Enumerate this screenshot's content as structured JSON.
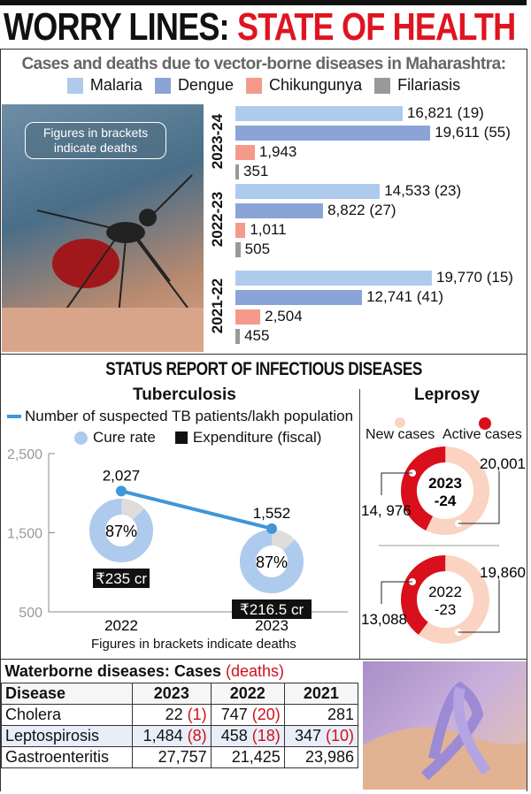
{
  "title": {
    "black": "WORRY LINES:",
    "red": "STATE OF HEALTH"
  },
  "vector": {
    "subtitle": "Cases and deaths due to vector-borne diseases in Maharashtra:",
    "note": "Figures in brackets indicate deaths",
    "colors": {
      "Malaria": "#aecbee",
      "Dengue": "#8aa4d8",
      "Chikungunya": "#f5998a",
      "Filariasis": "#999999"
    }
  },
  "tb": {
    "title": "Tuberculosis",
    "legend_line": "Number of suspected TB patients/lakh population",
    "legend_cure": "Cure rate",
    "legend_exp": "Expenditure (fiscal)",
    "footnote": "Figures in brackets  indicate deaths"
  },
  "leprosy": {
    "title": "Leprosy",
    "legend_new": "New cases",
    "legend_active": "Active cases",
    "panels": [
      {
        "year": "2023\n-24",
        "year_l1": "2023",
        "year_l2": "-24",
        "active_label": "14, 976",
        "new_label": "20,001",
        "active": 14976,
        "new": 20001
      },
      {
        "year": "2022\n-23",
        "year_l1": "2022",
        "year_l2": "-23",
        "active_label": "13,088",
        "new_label": "19,860",
        "active": 13088,
        "new": 19860
      }
    ]
  },
  "waterborne": {
    "caption": "Waterborne diseases: Cases",
    "caption_red": "(deaths)",
    "headers": [
      "Disease",
      "2023",
      "2022",
      "2021"
    ],
    "rows": [
      {
        "disease": "Cholera",
        "cells": [
          [
            "22",
            "(1)"
          ],
          [
            "747",
            "(20)"
          ],
          [
            "281",
            ""
          ]
        ]
      },
      {
        "disease": "Leptospirosis",
        "cells": [
          [
            "1,484",
            "(8)"
          ],
          [
            "458",
            "(18)"
          ],
          [
            "347",
            "(10)"
          ]
        ]
      },
      {
        "disease": "Gastroenteritis",
        "cells": [
          [
            "27,757",
            ""
          ],
          [
            "21,425",
            ""
          ],
          [
            "23,986",
            ""
          ]
        ]
      }
    ]
  },
  "chart_data": [
    {
      "type": "bar",
      "orientation": "horizontal",
      "title": "Cases and deaths due to vector-borne diseases in Maharashtra",
      "legend": [
        "Malaria",
        "Dengue",
        "Chikungunya",
        "Filariasis"
      ],
      "categories": [
        "2023-24",
        "2022-23",
        "2021-22"
      ],
      "series": [
        {
          "name": "Malaria",
          "values": [
            16821,
            14533,
            19770
          ],
          "deaths": [
            19,
            23,
            15
          ],
          "labels": [
            "16,821 (19)",
            "14,533 (23)",
            "19,770 (15)"
          ]
        },
        {
          "name": "Dengue",
          "values": [
            19611,
            8822,
            12741
          ],
          "deaths": [
            55,
            27,
            41
          ],
          "labels": [
            "19,611 (55)",
            "8,822 (27)",
            "12,741 (41)"
          ]
        },
        {
          "name": "Chikungunya",
          "values": [
            1943,
            1011,
            2504
          ],
          "labels": [
            "1,943",
            "1,011",
            "2,504"
          ]
        },
        {
          "name": "Filariasis",
          "values": [
            351,
            505,
            455
          ],
          "labels": [
            "351",
            "505",
            "455"
          ]
        }
      ]
    },
    {
      "type": "line",
      "title": "Tuberculosis",
      "x": [
        "2022",
        "2023"
      ],
      "ylim": [
        500,
        2500
      ],
      "yticks": [
        "2,500",
        "1,500",
        "500"
      ],
      "series": [
        {
          "name": "Number of suspected TB patients/lakh population",
          "values": [
            2027,
            1552
          ],
          "labels": [
            "2,027",
            "1,552"
          ]
        }
      ],
      "cure_rate": [
        87,
        87
      ],
      "cure_labels": [
        "87%",
        "87%"
      ],
      "expenditure_labels": [
        "₹235 cr",
        "₹216.5 cr"
      ]
    },
    {
      "type": "pie",
      "title": "Leprosy",
      "categories": [
        "New cases",
        "Active cases"
      ],
      "series": [
        {
          "name": "2023-24",
          "values": [
            20001,
            14976
          ]
        },
        {
          "name": "2022-23",
          "values": [
            19860,
            13088
          ]
        }
      ]
    }
  ]
}
